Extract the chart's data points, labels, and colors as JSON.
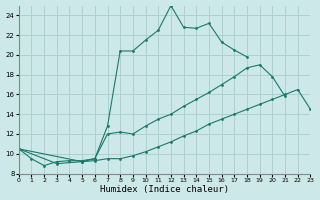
{
  "xlabel": "Humidex (Indice chaleur)",
  "background_color": "#cce8e8",
  "grid_color": "#aacccc",
  "line_color": "#1a7a6a",
  "xlim": [
    0,
    23
  ],
  "ylim": [
    8,
    25
  ],
  "xticks": [
    0,
    1,
    2,
    3,
    4,
    5,
    6,
    7,
    8,
    9,
    10,
    11,
    12,
    13,
    14,
    15,
    16,
    17,
    18,
    19,
    20,
    21,
    22,
    23
  ],
  "yticks": [
    8,
    10,
    12,
    14,
    16,
    18,
    20,
    22,
    24
  ],
  "series1": [
    [
      0,
      10.5
    ],
    [
      1,
      9.5
    ],
    [
      2,
      8.8
    ],
    [
      3,
      9.2
    ],
    [
      4,
      9.3
    ],
    [
      5,
      9.3
    ],
    [
      6,
      9.5
    ],
    [
      7,
      12.8
    ],
    [
      8,
      20.4
    ],
    [
      9,
      20.4
    ],
    [
      10,
      21.5
    ],
    [
      11,
      22.5
    ],
    [
      12,
      25.0
    ],
    [
      13,
      22.8
    ],
    [
      14,
      22.7
    ],
    [
      15,
      23.2
    ],
    [
      16,
      21.3
    ],
    [
      17,
      20.5
    ],
    [
      18,
      19.8
    ]
  ],
  "series2": [
    [
      0,
      10.5
    ],
    [
      3,
      9.0
    ],
    [
      5,
      9.2
    ],
    [
      6,
      9.5
    ],
    [
      7,
      12.0
    ],
    [
      8,
      12.2
    ],
    [
      9,
      12.0
    ],
    [
      10,
      12.8
    ],
    [
      11,
      13.5
    ],
    [
      12,
      14.0
    ],
    [
      13,
      14.8
    ],
    [
      14,
      15.5
    ],
    [
      15,
      16.2
    ],
    [
      16,
      17.0
    ],
    [
      17,
      17.8
    ],
    [
      18,
      18.7
    ],
    [
      19,
      19.0
    ],
    [
      20,
      17.8
    ],
    [
      21,
      15.8
    ]
  ],
  "series3": [
    [
      0,
      10.5
    ],
    [
      5,
      9.2
    ],
    [
      6,
      9.3
    ],
    [
      7,
      9.5
    ],
    [
      8,
      9.5
    ],
    [
      9,
      9.8
    ],
    [
      10,
      10.2
    ],
    [
      11,
      10.7
    ],
    [
      12,
      11.2
    ],
    [
      13,
      11.8
    ],
    [
      14,
      12.3
    ],
    [
      15,
      13.0
    ],
    [
      16,
      13.5
    ],
    [
      17,
      14.0
    ],
    [
      18,
      14.5
    ],
    [
      19,
      15.0
    ],
    [
      20,
      15.5
    ],
    [
      21,
      16.0
    ],
    [
      22,
      16.5
    ],
    [
      23,
      14.5
    ]
  ]
}
